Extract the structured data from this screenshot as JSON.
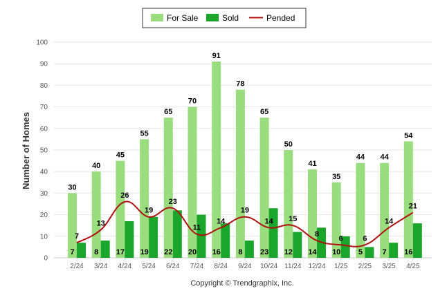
{
  "chart_data": {
    "type": "bar",
    "ylabel": "Number of Homes",
    "ylim": [
      0,
      100
    ],
    "yticks": [
      0,
      10,
      20,
      30,
      40,
      50,
      60,
      70,
      80,
      90,
      100
    ],
    "grid": true,
    "legend_position": "top-center",
    "categories": [
      "2/24",
      "3/24",
      "4/24",
      "5/24",
      "6/24",
      "7/24",
      "8/24",
      "9/24",
      "10/24",
      "11/24",
      "12/24",
      "1/25",
      "2/25",
      "3/25",
      "4/25"
    ],
    "series": [
      {
        "name": "For Sale",
        "type": "bar",
        "color": "#99dd7f",
        "values": [
          30,
          40,
          45,
          55,
          65,
          70,
          91,
          78,
          65,
          50,
          41,
          35,
          44,
          44,
          54
        ]
      },
      {
        "name": "Sold",
        "type": "bar",
        "color": "#1aa52b",
        "values": [
          7,
          8,
          17,
          19,
          22,
          20,
          16,
          8,
          23,
          12,
          14,
          10,
          5,
          7,
          16
        ]
      },
      {
        "name": "Pended",
        "type": "line",
        "color": "#b01010",
        "values": [
          7,
          13,
          26,
          19,
          23,
          11,
          14,
          19,
          14,
          15,
          8,
          6,
          6,
          14,
          21
        ]
      }
    ],
    "credit": "Copyright © Trendgraphix, Inc."
  }
}
